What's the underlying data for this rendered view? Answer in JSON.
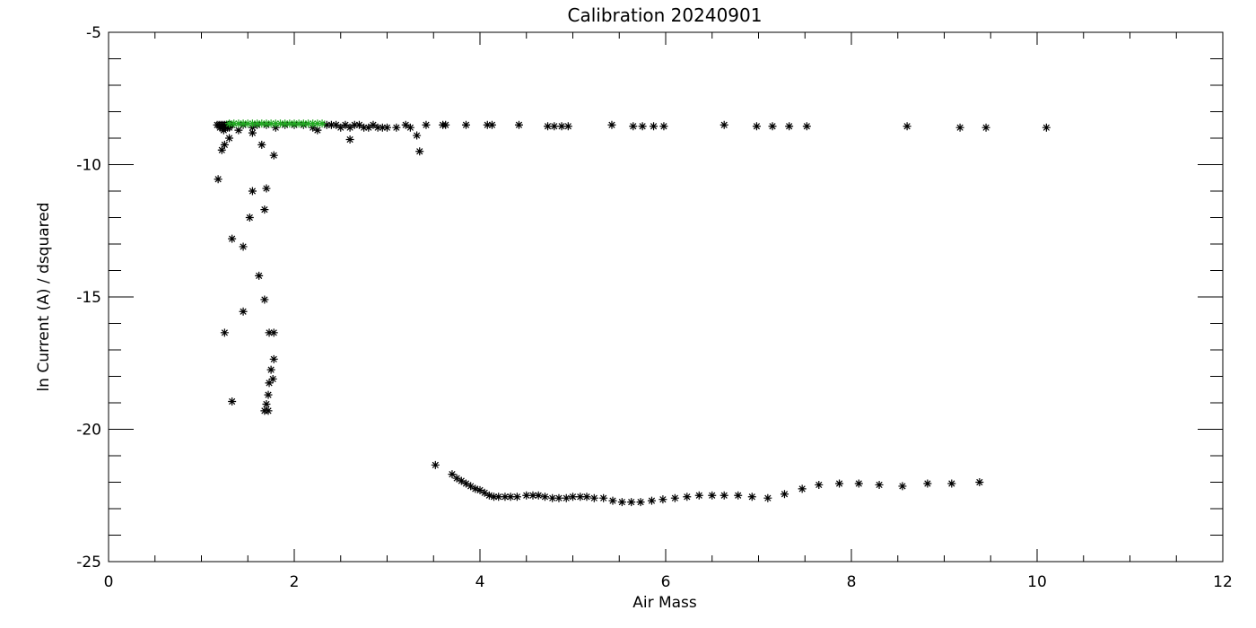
{
  "chart_data": {
    "type": "scatter",
    "title": "Calibration 20240901",
    "xlabel": "Air Mass",
    "ylabel": "ln Current (A) / dsquared",
    "xlim": [
      0,
      12
    ],
    "ylim": [
      -25,
      -5
    ],
    "xticks": [
      "0",
      "2",
      "4",
      "6",
      "8",
      "10",
      "12"
    ],
    "yticks": [
      "-5",
      "-10",
      "-15",
      "-20",
      "-25"
    ],
    "grid": false,
    "marker": "asterisk",
    "colors": {
      "black": "#000000",
      "green": "#22aa22"
    },
    "series": [
      {
        "color": "#000000",
        "points": [
          [
            1.17,
            -8.5
          ],
          [
            1.19,
            -8.5
          ],
          [
            1.21,
            -8.5
          ],
          [
            1.23,
            -8.5
          ],
          [
            1.25,
            -8.5
          ],
          [
            1.27,
            -8.5
          ],
          [
            1.29,
            -8.5
          ],
          [
            1.31,
            -8.5
          ],
          [
            1.33,
            -8.5
          ],
          [
            1.2,
            -8.6
          ],
          [
            1.22,
            -8.6
          ],
          [
            1.24,
            -8.7
          ],
          [
            1.26,
            -8.6
          ],
          [
            1.28,
            -8.6
          ],
          [
            1.3,
            -8.6
          ],
          [
            1.45,
            -8.5
          ],
          [
            1.55,
            -8.6
          ],
          [
            1.6,
            -8.5
          ],
          [
            1.7,
            -8.5
          ],
          [
            1.8,
            -8.6
          ],
          [
            1.9,
            -8.5
          ],
          [
            2.0,
            -8.5
          ],
          [
            2.1,
            -8.5
          ],
          [
            2.2,
            -8.6
          ],
          [
            2.25,
            -8.7
          ],
          [
            2.35,
            -8.5
          ],
          [
            2.4,
            -8.5
          ],
          [
            2.45,
            -8.5
          ],
          [
            2.5,
            -8.6
          ],
          [
            2.55,
            -8.5
          ],
          [
            2.6,
            -8.6
          ],
          [
            2.65,
            -8.5
          ],
          [
            2.7,
            -8.5
          ],
          [
            2.75,
            -8.6
          ],
          [
            2.8,
            -8.6
          ],
          [
            2.85,
            -8.5
          ],
          [
            2.9,
            -8.6
          ],
          [
            2.95,
            -8.6
          ],
          [
            3.0,
            -8.6
          ],
          [
            3.1,
            -8.6
          ],
          [
            3.2,
            -8.5
          ],
          [
            3.25,
            -8.6
          ],
          [
            3.32,
            -8.9
          ],
          [
            3.35,
            -9.5
          ],
          [
            3.42,
            -8.5
          ],
          [
            3.6,
            -8.5
          ],
          [
            3.63,
            -8.5
          ],
          [
            3.85,
            -8.5
          ],
          [
            4.08,
            -8.5
          ],
          [
            4.13,
            -8.5
          ],
          [
            4.42,
            -8.5
          ],
          [
            4.73,
            -8.55
          ],
          [
            4.8,
            -8.55
          ],
          [
            4.88,
            -8.55
          ],
          [
            4.95,
            -8.55
          ],
          [
            5.42,
            -8.5
          ],
          [
            5.65,
            -8.55
          ],
          [
            5.75,
            -8.55
          ],
          [
            5.87,
            -8.55
          ],
          [
            5.98,
            -8.55
          ],
          [
            6.63,
            -8.5
          ],
          [
            6.98,
            -8.55
          ],
          [
            7.15,
            -8.55
          ],
          [
            7.33,
            -8.55
          ],
          [
            7.52,
            -8.55
          ],
          [
            8.6,
            -8.55
          ],
          [
            9.17,
            -8.6
          ],
          [
            9.45,
            -8.6
          ],
          [
            10.1,
            -8.6
          ],
          [
            1.18,
            -10.55
          ],
          [
            1.22,
            -9.45
          ],
          [
            1.25,
            -9.25
          ],
          [
            1.3,
            -9.0
          ],
          [
            1.4,
            -8.7
          ],
          [
            1.55,
            -8.8
          ],
          [
            1.65,
            -9.25
          ],
          [
            1.78,
            -9.65
          ],
          [
            2.6,
            -9.05
          ],
          [
            1.55,
            -11.0
          ],
          [
            1.7,
            -10.9
          ],
          [
            1.52,
            -12.0
          ],
          [
            1.68,
            -11.7
          ],
          [
            1.33,
            -12.8
          ],
          [
            1.45,
            -13.1
          ],
          [
            1.62,
            -14.2
          ],
          [
            1.68,
            -15.1
          ],
          [
            1.45,
            -15.55
          ],
          [
            1.25,
            -16.35
          ],
          [
            1.73,
            -16.35
          ],
          [
            1.78,
            -16.35
          ],
          [
            1.78,
            -17.35
          ],
          [
            1.75,
            -17.75
          ],
          [
            1.77,
            -18.1
          ],
          [
            1.73,
            -18.25
          ],
          [
            1.72,
            -18.7
          ],
          [
            1.33,
            -18.95
          ],
          [
            1.7,
            -19.05
          ],
          [
            1.68,
            -19.3
          ],
          [
            1.72,
            -19.3
          ],
          [
            3.52,
            -21.35
          ],
          [
            3.7,
            -21.7
          ],
          [
            3.75,
            -21.85
          ],
          [
            3.8,
            -21.95
          ],
          [
            3.85,
            -22.05
          ],
          [
            3.9,
            -22.15
          ],
          [
            3.95,
            -22.25
          ],
          [
            4.0,
            -22.3
          ],
          [
            4.05,
            -22.4
          ],
          [
            4.1,
            -22.5
          ],
          [
            4.15,
            -22.55
          ],
          [
            4.2,
            -22.55
          ],
          [
            4.27,
            -22.55
          ],
          [
            4.33,
            -22.55
          ],
          [
            4.4,
            -22.55
          ],
          [
            4.5,
            -22.5
          ],
          [
            4.57,
            -22.5
          ],
          [
            4.63,
            -22.5
          ],
          [
            4.7,
            -22.55
          ],
          [
            4.78,
            -22.6
          ],
          [
            4.85,
            -22.6
          ],
          [
            4.93,
            -22.6
          ],
          [
            5.0,
            -22.55
          ],
          [
            5.08,
            -22.55
          ],
          [
            5.15,
            -22.55
          ],
          [
            5.23,
            -22.6
          ],
          [
            5.33,
            -22.6
          ],
          [
            5.43,
            -22.7
          ],
          [
            5.53,
            -22.75
          ],
          [
            5.63,
            -22.75
          ],
          [
            5.73,
            -22.75
          ],
          [
            5.85,
            -22.7
          ],
          [
            5.97,
            -22.65
          ],
          [
            6.1,
            -22.6
          ],
          [
            6.23,
            -22.55
          ],
          [
            6.36,
            -22.5
          ],
          [
            6.5,
            -22.5
          ],
          [
            6.63,
            -22.5
          ],
          [
            6.78,
            -22.5
          ],
          [
            6.93,
            -22.55
          ],
          [
            7.1,
            -22.6
          ],
          [
            7.28,
            -22.45
          ],
          [
            7.47,
            -22.25
          ],
          [
            7.65,
            -22.1
          ],
          [
            7.87,
            -22.05
          ],
          [
            8.08,
            -22.05
          ],
          [
            8.3,
            -22.1
          ],
          [
            8.55,
            -22.15
          ],
          [
            8.82,
            -22.05
          ],
          [
            9.08,
            -22.05
          ],
          [
            9.38,
            -22.0
          ]
        ]
      },
      {
        "color": "#22aa22",
        "points": [
          [
            1.3,
            -8.45
          ],
          [
            1.35,
            -8.45
          ],
          [
            1.4,
            -8.45
          ],
          [
            1.45,
            -8.45
          ],
          [
            1.5,
            -8.45
          ],
          [
            1.55,
            -8.45
          ],
          [
            1.6,
            -8.45
          ],
          [
            1.65,
            -8.45
          ],
          [
            1.7,
            -8.45
          ],
          [
            1.75,
            -8.45
          ],
          [
            1.8,
            -8.45
          ],
          [
            1.85,
            -8.45
          ],
          [
            1.9,
            -8.45
          ],
          [
            1.95,
            -8.45
          ],
          [
            2.0,
            -8.45
          ],
          [
            2.05,
            -8.45
          ],
          [
            2.1,
            -8.45
          ],
          [
            2.15,
            -8.45
          ],
          [
            2.2,
            -8.45
          ],
          [
            2.25,
            -8.45
          ],
          [
            2.3,
            -8.45
          ]
        ]
      }
    ]
  }
}
